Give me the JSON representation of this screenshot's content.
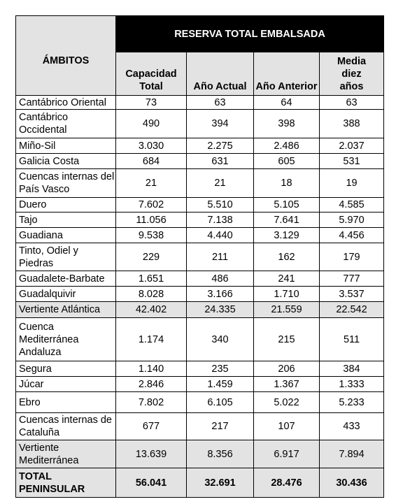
{
  "header": {
    "ambitos": "ÁMBITOS",
    "title": "RESERVA TOTAL EMBALSADA",
    "columns": [
      "Capacidad Total",
      "Año Actual",
      "Año Anterior",
      "Media diez años"
    ]
  },
  "table": {
    "rows": [
      [
        "Cantábrico Oriental",
        "73",
        "63",
        "64",
        "63"
      ],
      [
        "Cantábrico Occidental",
        "490",
        "394",
        "398",
        "388"
      ],
      [
        "Miño-Sil",
        "3.030",
        "2.275",
        "2.486",
        "2.037"
      ],
      [
        "Galicia Costa",
        "684",
        "631",
        "605",
        "531"
      ],
      [
        "Cuencas internas del País Vasco",
        "21",
        "21",
        "18",
        "19"
      ],
      [
        "Duero",
        "7.602",
        "5.510",
        "5.105",
        "4.585"
      ],
      [
        "Tajo",
        "11.056",
        "7.138",
        "7.641",
        "5.970"
      ],
      [
        "Guadiana",
        "9.538",
        "4.440",
        "3.129",
        "4.456"
      ],
      [
        "Tinto, Odiel y Piedras",
        "229",
        "211",
        "162",
        "179"
      ],
      [
        "Guadalete-Barbate",
        "1.651",
        "486",
        "241",
        "777"
      ],
      [
        "Guadalquivir",
        "8.028",
        "3.166",
        "1.710",
        "3.537"
      ],
      [
        "Vertiente Atlántica",
        "42.402",
        "24.335",
        "21.559",
        "22.542"
      ],
      [
        "Cuenca Mediterránea Andaluza",
        "1.174",
        "340",
        "215",
        "511"
      ],
      [
        "Segura",
        "1.140",
        "235",
        "206",
        "384"
      ],
      [
        "Júcar",
        "2.846",
        "1.459",
        "1.367",
        "1.333"
      ],
      [
        "Ebro",
        "7.802",
        "6.105",
        "5.022",
        "5.233"
      ],
      [
        "Cuencas internas de Cataluña",
        "677",
        "217",
        "107",
        "433"
      ],
      [
        "Vertiente Mediterránea",
        "13.639",
        "8.356",
        "6.917",
        "7.894"
      ],
      [
        "TOTAL PENINSULAR",
        "56.041",
        "32.691",
        "28.476",
        "30.436"
      ]
    ]
  }
}
